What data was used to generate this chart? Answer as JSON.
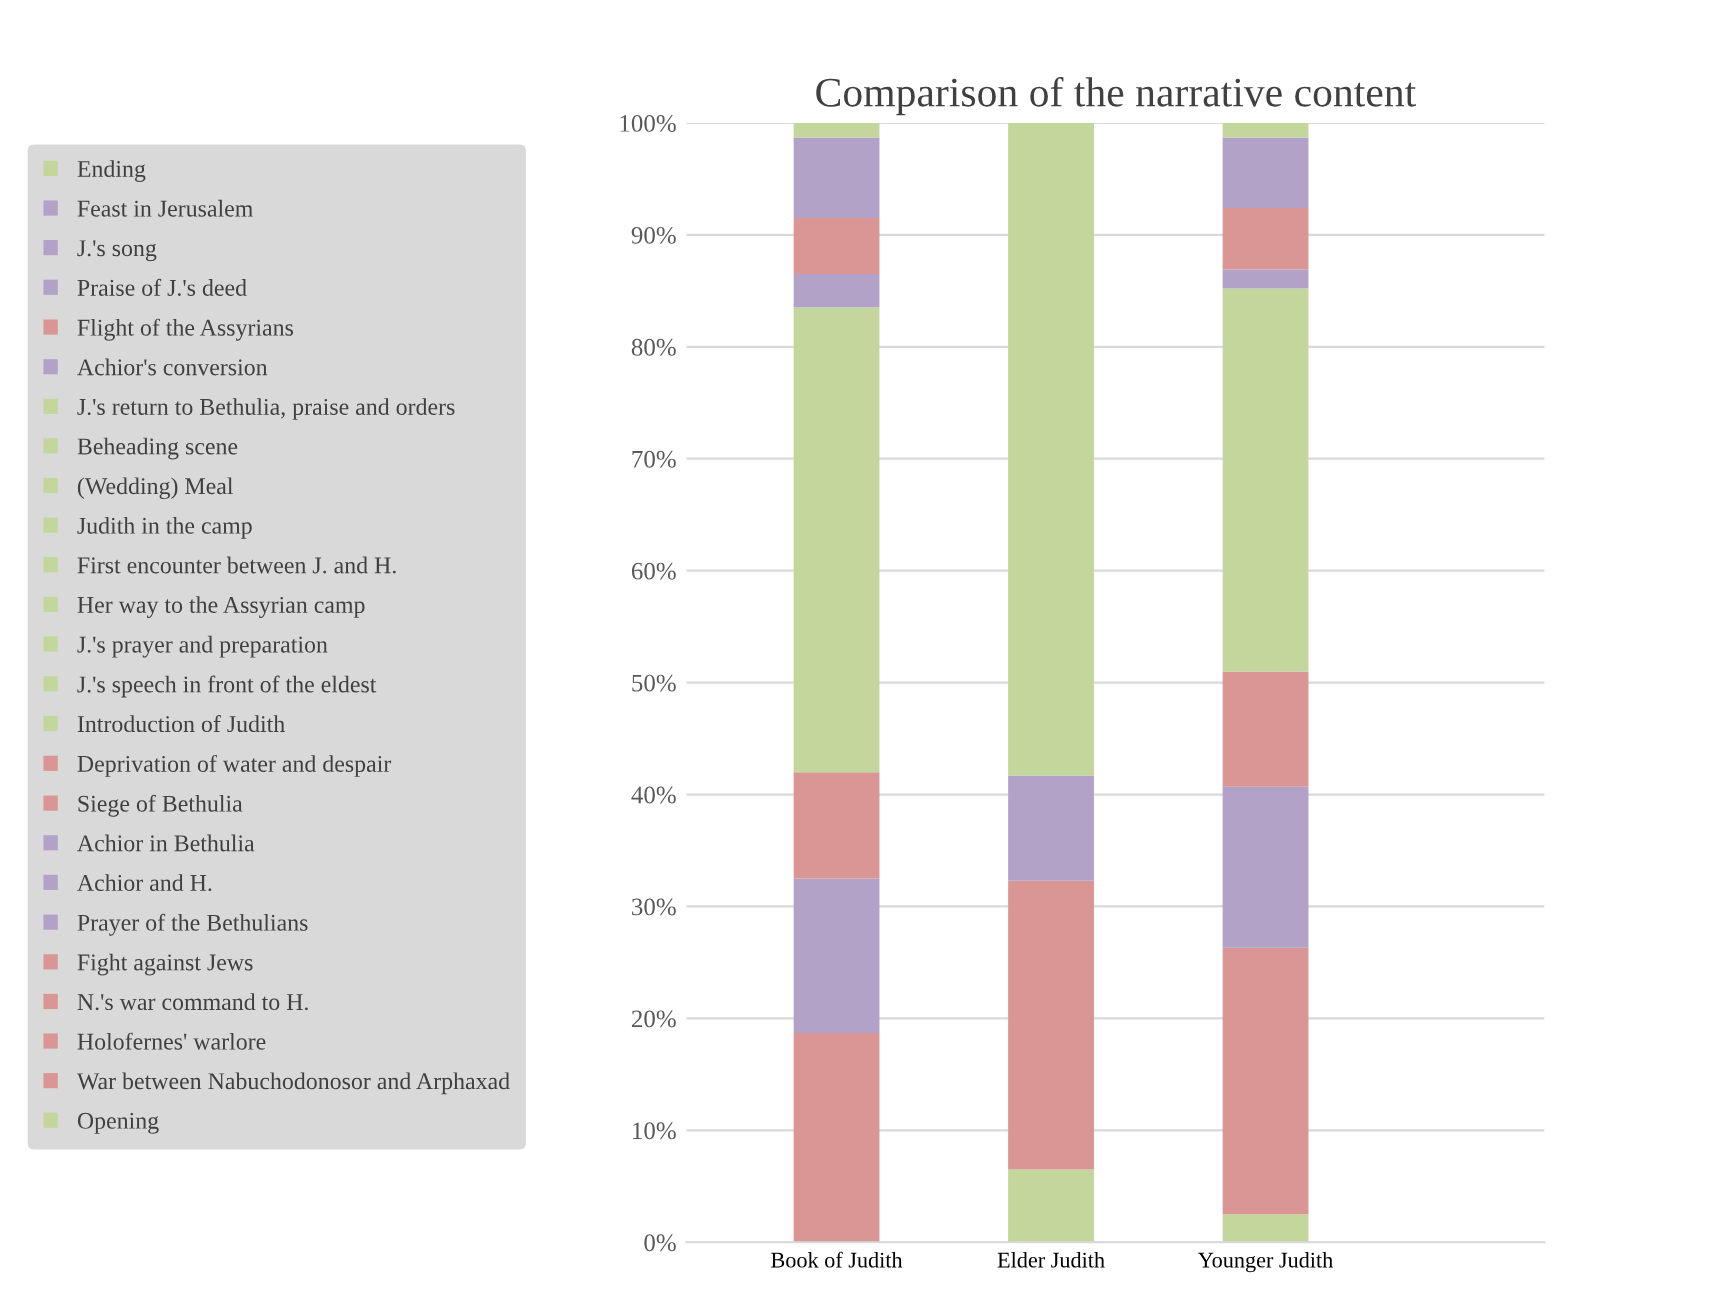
{
  "chart_data": {
    "type": "bar",
    "stacked": true,
    "title": "Comparison of the narrative content",
    "categories": [
      "Book of Judith",
      "Elder Judith",
      "Younger Judith"
    ],
    "ylim": [
      0,
      100
    ],
    "yticks": [
      {
        "value": 0,
        "label": "0%"
      },
      {
        "value": 10,
        "label": "10%"
      },
      {
        "value": 20,
        "label": "20%"
      },
      {
        "value": 30,
        "label": "30%"
      },
      {
        "value": 40,
        "label": "40%"
      },
      {
        "value": 50,
        "label": "50%"
      },
      {
        "value": 60,
        "label": "60%"
      },
      {
        "value": 70,
        "label": "70%"
      },
      {
        "value": 80,
        "label": "80%"
      },
      {
        "value": 90,
        "label": "90%"
      },
      {
        "value": 100,
        "label": "100%"
      }
    ],
    "grid": "y",
    "legend": "left",
    "series": [
      {
        "name": "Opening",
        "color": "#c3d69b",
        "values": [
          0,
          6.5,
          2.5
        ]
      },
      {
        "name": "War between Nabuchodonosor and Arphaxad",
        "color": "#d99694",
        "values": [
          18.7,
          25.8,
          23.8
        ]
      },
      {
        "name": "Holofernes' warlore",
        "color": "#d99694",
        "values": [
          null,
          null,
          null
        ]
      },
      {
        "name": "N.'s war command to H.",
        "color": "#d99694",
        "values": [
          null,
          null,
          null
        ]
      },
      {
        "name": "Fight against Jews",
        "color": "#d99694",
        "values": [
          null,
          null,
          null
        ]
      },
      {
        "name": "Prayer of the Bethulians",
        "color": "#b3a2c7",
        "values": [
          13.8,
          9.4,
          14.4
        ]
      },
      {
        "name": "Achior and H.",
        "color": "#b3a2c7",
        "values": [
          null,
          null,
          null
        ]
      },
      {
        "name": "Achior in Bethulia",
        "color": "#b3a2c7",
        "values": [
          null,
          null,
          null
        ]
      },
      {
        "name": "Siege of Bethulia",
        "color": "#d99694",
        "values": [
          9.5,
          0,
          10.3
        ]
      },
      {
        "name": "Deprivation of water and despair",
        "color": "#d99694",
        "values": [
          null,
          null,
          null
        ]
      },
      {
        "name": "Introduction of Judith",
        "color": "#c3d69b",
        "values": [
          41.5,
          58.3,
          34.2
        ]
      },
      {
        "name": "J.'s speech in front of the eldest",
        "color": "#c3d69b",
        "values": [
          null,
          null,
          null
        ]
      },
      {
        "name": "J.'s prayer and preparation",
        "color": "#c3d69b",
        "values": [
          null,
          null,
          null
        ]
      },
      {
        "name": "Her way to the Assyrian camp",
        "color": "#c3d69b",
        "values": [
          null,
          null,
          null
        ]
      },
      {
        "name": "First encounter between J. and H.",
        "color": "#c3d69b",
        "values": [
          null,
          null,
          null
        ]
      },
      {
        "name": "Judith in the camp",
        "color": "#c3d69b",
        "values": [
          null,
          null,
          null
        ]
      },
      {
        "name": "(Wedding) Meal",
        "color": "#c3d69b",
        "values": [
          null,
          null,
          null
        ]
      },
      {
        "name": "Beheading scene",
        "color": "#c3d69b",
        "values": [
          null,
          null,
          null
        ]
      },
      {
        "name": "J.'s return to Bethulia, praise and orders",
        "color": "#c3d69b",
        "values": [
          null,
          null,
          null
        ]
      },
      {
        "name": "Achior's conversion",
        "color": "#b3a2c7",
        "values": [
          3.0,
          0,
          1.7
        ]
      },
      {
        "name": "Flight of the Assyrians",
        "color": "#d99694",
        "values": [
          5.0,
          0,
          5.5
        ]
      },
      {
        "name": "Praise of J.'s deed",
        "color": "#b3a2c7",
        "values": [
          7.2,
          0,
          6.3
        ]
      },
      {
        "name": "J.'s song",
        "color": "#b3a2c7",
        "values": [
          null,
          null,
          null
        ]
      },
      {
        "name": "Feast in Jerusalem",
        "color": "#b3a2c7",
        "values": [
          null,
          null,
          null
        ]
      },
      {
        "name": "Ending",
        "color": "#c3d69b",
        "values": [
          1.3,
          0,
          1.3
        ]
      }
    ]
  }
}
